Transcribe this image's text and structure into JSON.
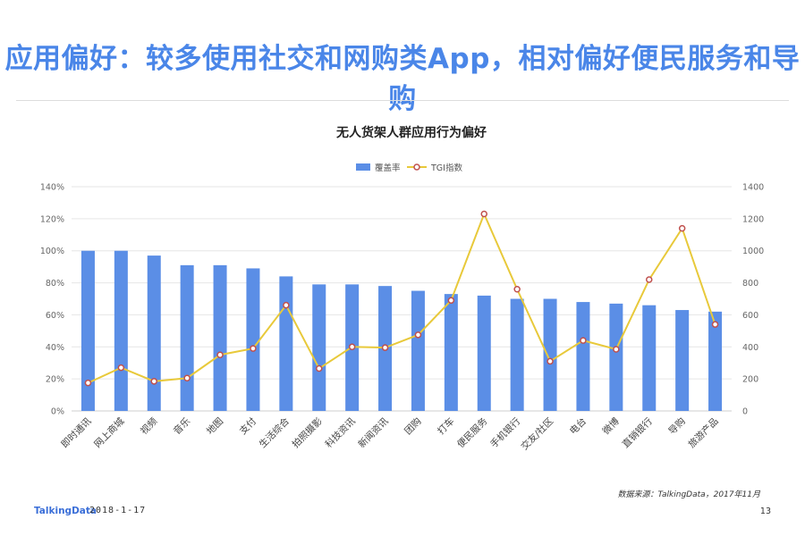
{
  "page": {
    "headline": "应用偏好：较多使用社交和网购类App，相对偏好便民服务和导购",
    "source": "数据来源：TalkingData，2017年11月",
    "brand": "TalkingData",
    "date": "2018-1-17",
    "page_number": "13"
  },
  "colors": {
    "bar": "#5b8ee6",
    "line": "#e8c93a",
    "marker_stroke": "#c0504d",
    "axis_text": "#666666",
    "grid": "#e6e6e6"
  },
  "chart_data": {
    "type": "bar",
    "title": "无人货架人群应用行为偏好",
    "categories": [
      "即时通讯",
      "网上商城",
      "视频",
      "音乐",
      "地图",
      "支付",
      "生活综合",
      "拍照摄影",
      "科技资讯",
      "新闻资讯",
      "团购",
      "打车",
      "便民服务",
      "手机银行",
      "交友/社区",
      "电台",
      "微博",
      "直销银行",
      "导购",
      "旅游产品"
    ],
    "series": [
      {
        "name": "覆盖率",
        "type": "bar",
        "axis": "left",
        "values": [
          100,
          100,
          97,
          91,
          91,
          89,
          84,
          79,
          79,
          78,
          75,
          73,
          72,
          70,
          70,
          68,
          67,
          66,
          63,
          62
        ]
      },
      {
        "name": "TGI指数",
        "type": "line",
        "axis": "right",
        "values": [
          175,
          270,
          185,
          205,
          350,
          390,
          660,
          265,
          400,
          395,
          475,
          690,
          1230,
          760,
          310,
          440,
          385,
          820,
          1140,
          540
        ]
      }
    ],
    "y_left": {
      "min": 0,
      "max": 140,
      "step": 20,
      "suffix": "%",
      "ticks": [
        "0%",
        "20%",
        "40%",
        "60%",
        "80%",
        "100%",
        "120%",
        "140%"
      ]
    },
    "y_right": {
      "min": 0,
      "max": 1400,
      "step": 200,
      "ticks": [
        "0",
        "200",
        "400",
        "600",
        "800",
        "1000",
        "1200",
        "1400"
      ]
    },
    "grid": true,
    "legend_position": "top-center"
  }
}
